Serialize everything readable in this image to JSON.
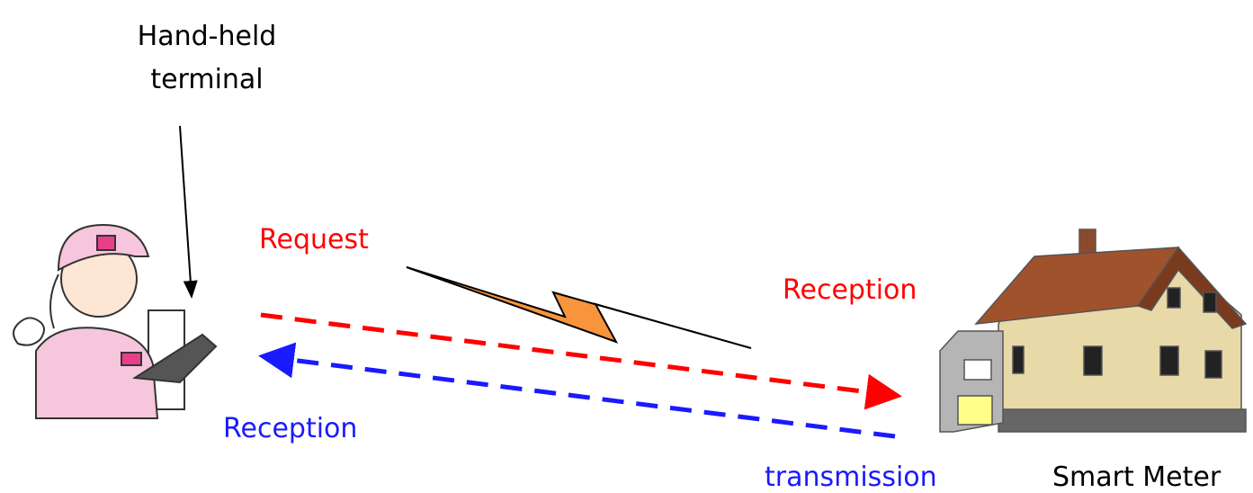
{
  "terminal_label": [
    "Hand-held",
    "terminal"
  ],
  "request_label": "Request",
  "meter_reception_label": "Reception",
  "terminal_reception_label": "Reception",
  "transmission_label": "transmission",
  "meter_label": "Smart Meter"
}
